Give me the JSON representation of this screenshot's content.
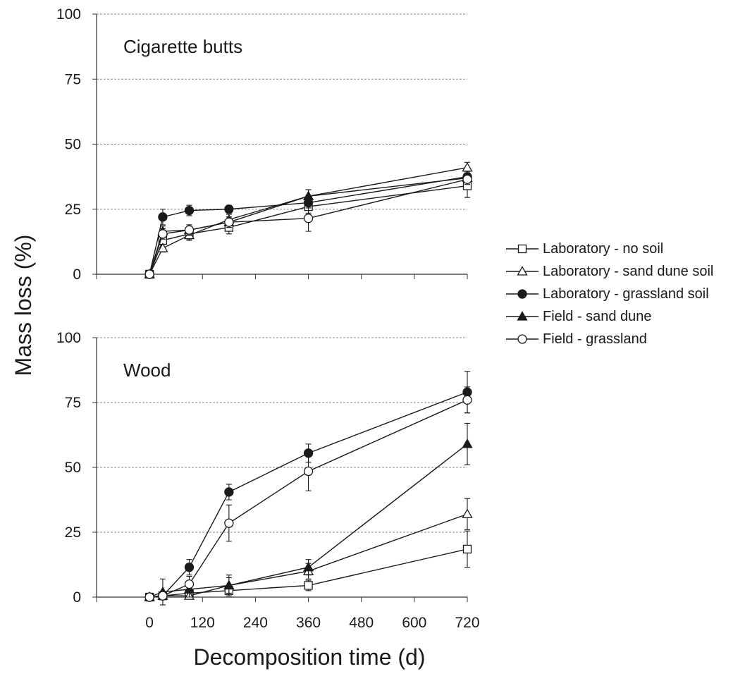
{
  "chart_data": {
    "type": "line",
    "xlabel": "Decomposition time (d)",
    "ylabel": "Mass loss (%)",
    "x_ticks": [
      0,
      120,
      240,
      360,
      480,
      600,
      720
    ],
    "xlim": [
      -120,
      720
    ],
    "legend_position": "right",
    "panels": [
      {
        "title": "Cigarette butts",
        "ylim": [
          0,
          100
        ],
        "y_ticks": [
          0,
          25,
          50,
          75,
          100
        ],
        "grid": "horizontal dashed",
        "series": [
          {
            "name": "Laboratory - no soil",
            "marker": "square-open",
            "x": [
              0,
              30,
              90,
              180,
              360,
              720
            ],
            "y": [
              0,
              13,
              15.5,
              18,
              26,
              34
            ],
            "err": [
              0,
              1.5,
              2,
              2.5,
              2.5,
              4.5
            ]
          },
          {
            "name": "Laboratory - sand dune soil",
            "marker": "triangle-open",
            "x": [
              0,
              30,
              90,
              180,
              360,
              720
            ],
            "y": [
              0,
              10,
              15,
              21,
              30,
              41
            ],
            "err": [
              0,
              1.5,
              2,
              2,
              2.5,
              2
            ]
          },
          {
            "name": "Laboratory - grassland soil",
            "marker": "circle-filled",
            "x": [
              0,
              30,
              90,
              180,
              360,
              720
            ],
            "y": [
              0,
              22,
              24.5,
              25,
              27.5,
              37.5
            ],
            "err": [
              0,
              3,
              2,
              1.5,
              2,
              2
            ]
          },
          {
            "name": "Field - sand dune",
            "marker": "triangle-filled",
            "x": [
              0,
              30,
              90,
              180,
              360,
              720
            ],
            "y": [
              0,
              16.5,
              17,
              20,
              30,
              37
            ],
            "err": [
              0,
              2,
              2,
              2,
              2.5,
              2
            ]
          },
          {
            "name": "Field - grassland",
            "marker": "circle-open",
            "x": [
              0,
              30,
              90,
              180,
              360,
              720
            ],
            "y": [
              0,
              15.5,
              17,
              20,
              21.5,
              36.5
            ],
            "err": [
              0,
              2,
              2,
              2,
              5,
              2
            ]
          }
        ]
      },
      {
        "title": "Wood",
        "ylim": [
          0,
          100
        ],
        "y_ticks": [
          0,
          25,
          50,
          75,
          100
        ],
        "grid": "horizontal dashed",
        "series": [
          {
            "name": "Laboratory - no soil",
            "marker": "square-open",
            "x": [
              0,
              30,
              90,
              180,
              360,
              720
            ],
            "y": [
              0,
              0.5,
              1.5,
              2.5,
              4.5,
              18.5
            ],
            "err": [
              0,
              1,
              1,
              1,
              2,
              7
            ]
          },
          {
            "name": "Laboratory - sand dune soil",
            "marker": "triangle-open",
            "x": [
              0,
              30,
              90,
              180,
              360,
              720
            ],
            "y": [
              0,
              0.5,
              0.5,
              4.5,
              10,
              32
            ],
            "err": [
              0,
              1,
              1,
              3,
              3,
              6
            ]
          },
          {
            "name": "Laboratory - grassland soil",
            "marker": "circle-filled",
            "x": [
              0,
              30,
              90,
              180,
              360,
              720
            ],
            "y": [
              0,
              0.5,
              11.5,
              40.5,
              55.5,
              79
            ],
            "err": [
              0,
              1,
              3,
              3,
              3.5,
              8
            ]
          },
          {
            "name": "Field - sand dune",
            "marker": "triangle-filled",
            "x": [
              0,
              30,
              90,
              180,
              360,
              720
            ],
            "y": [
              0,
              2,
              3,
              4.5,
              11.5,
              59
            ],
            "err": [
              0,
              5,
              3,
              4,
              3,
              8
            ]
          },
          {
            "name": "Field - grassland",
            "marker": "circle-open",
            "x": [
              0,
              30,
              90,
              180,
              360,
              720
            ],
            "y": [
              0,
              0.5,
              5,
              28.5,
              48.5,
              76
            ],
            "err": [
              0,
              1,
              3,
              7,
              7.5,
              5
            ]
          }
        ]
      }
    ]
  }
}
